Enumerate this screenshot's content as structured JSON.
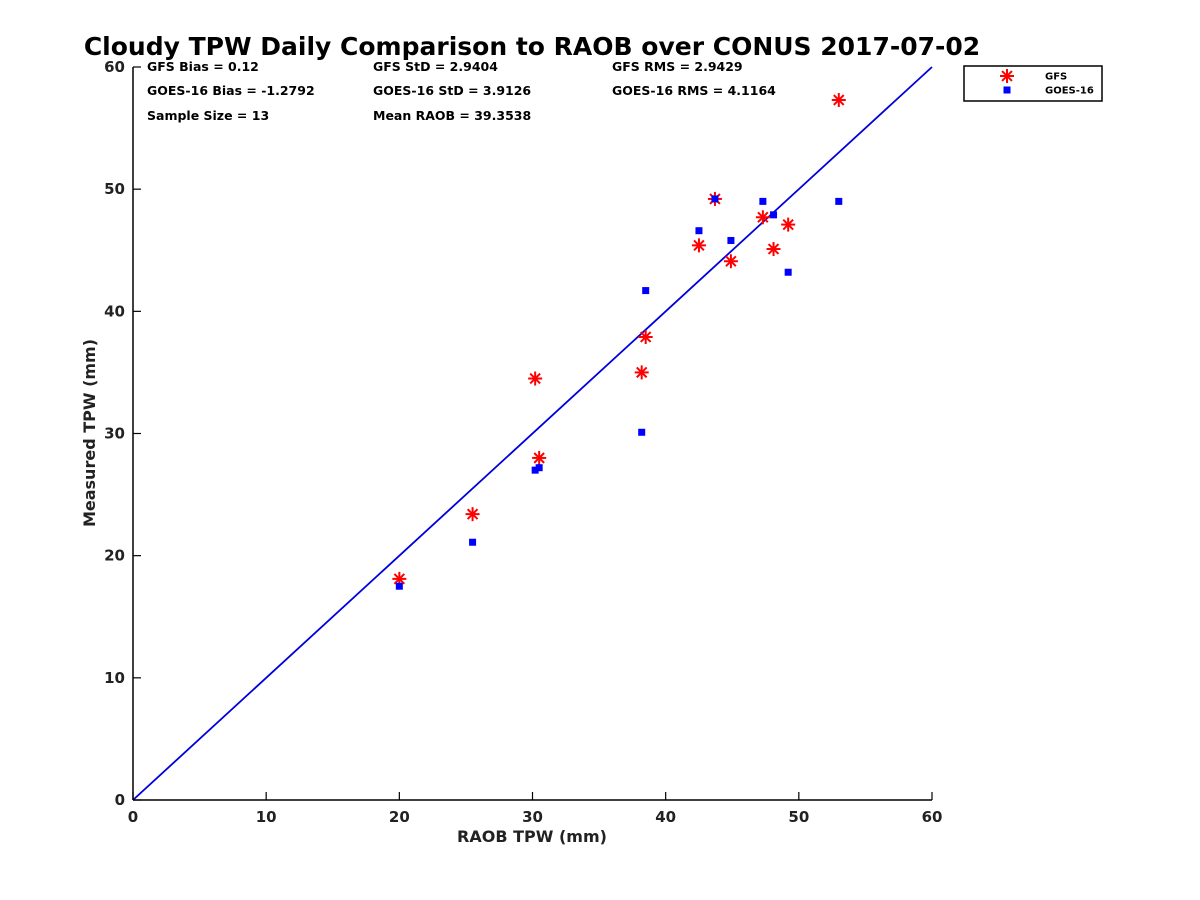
{
  "chart_data": {
    "type": "scatter",
    "title": "Cloudy TPW Daily Comparison to RAOB over CONUS 2017-07-02",
    "xlabel": "RAOB TPW (mm)",
    "ylabel": "Measured TPW (mm)",
    "xlim": [
      0,
      60
    ],
    "ylim": [
      0,
      60
    ],
    "xticks": [
      "0",
      "10",
      "20",
      "30",
      "40",
      "50",
      "60"
    ],
    "yticks": [
      "0",
      "10",
      "20",
      "30",
      "40",
      "50",
      "60"
    ],
    "grid": false,
    "legend_position": "outside-top-right",
    "reference_line": {
      "from": [
        0,
        0
      ],
      "to": [
        60,
        60
      ],
      "color": "#0000dd"
    },
    "stats": [
      "GFS Bias = 0.12",
      "GFS StD = 2.9404",
      "GFS RMS = 2.9429",
      "GOES-16 Bias = -1.2792",
      "GOES-16 StD = 3.9126",
      "GOES-16 RMS = 4.1164",
      "Sample Size = 13",
      "Mean RAOB = 39.3538"
    ],
    "series": [
      {
        "name": "GFS",
        "marker": "asterisk",
        "color": "#ff0000",
        "x": [
          20.0,
          25.5,
          30.2,
          30.5,
          38.2,
          38.5,
          42.5,
          43.7,
          44.9,
          47.3,
          48.1,
          49.2,
          53.0
        ],
        "y": [
          18.1,
          23.4,
          34.5,
          28.0,
          35.0,
          37.9,
          45.4,
          49.2,
          44.1,
          47.7,
          45.1,
          47.1,
          57.3
        ]
      },
      {
        "name": "GOES-16",
        "marker": "square",
        "color": "#0000ff",
        "x": [
          20.0,
          25.5,
          30.2,
          30.5,
          38.2,
          38.5,
          42.5,
          43.7,
          44.9,
          47.3,
          48.1,
          49.2,
          53.0
        ],
        "y": [
          17.5,
          21.1,
          27.0,
          27.2,
          30.1,
          41.7,
          46.6,
          49.2,
          45.8,
          49.0,
          47.9,
          43.2,
          49.0
        ]
      }
    ]
  }
}
